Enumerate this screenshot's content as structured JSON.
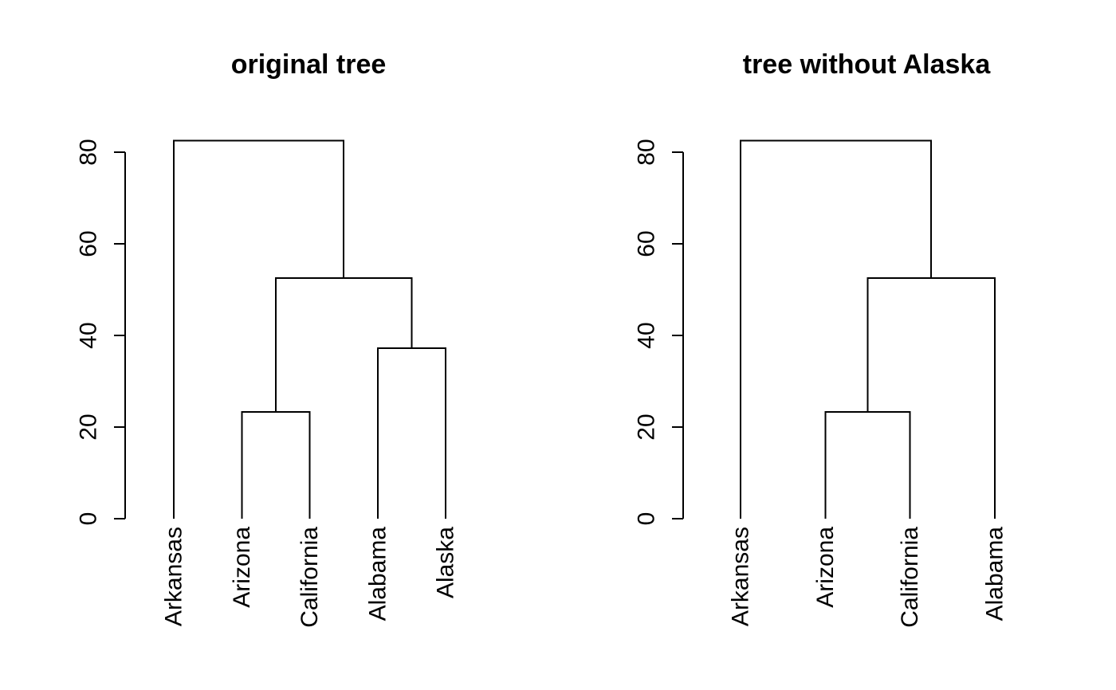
{
  "chart_data": [
    {
      "type": "dendrogram",
      "title": "original tree",
      "ylim": [
        0,
        82.5
      ],
      "y_ticks": [
        0,
        20,
        40,
        60,
        80
      ],
      "y_tick_labels": [
        "0",
        "20",
        "40",
        "60",
        "80"
      ],
      "leaves": [
        "Arkansas",
        "Arizona",
        "California",
        "Alabama",
        "Alaska"
      ],
      "merges": [
        {
          "left": [
            "Arizona"
          ],
          "right": [
            "California"
          ],
          "height": 23.3
        },
        {
          "left": [
            "Alabama"
          ],
          "right": [
            "Alaska"
          ],
          "height": 37.2
        },
        {
          "left": [
            "Arizona",
            "California"
          ],
          "right": [
            "Alabama",
            "Alaska"
          ],
          "height": 52.5
        },
        {
          "left": [
            "Arkansas"
          ],
          "right": [
            "Arizona",
            "California",
            "Alabama",
            "Alaska"
          ],
          "height": 82.5
        }
      ]
    },
    {
      "type": "dendrogram",
      "title": "tree without Alaska",
      "ylim": [
        0,
        82.5
      ],
      "y_ticks": [
        0,
        20,
        40,
        60,
        80
      ],
      "y_tick_labels": [
        "0",
        "20",
        "40",
        "60",
        "80"
      ],
      "leaves": [
        "Arkansas",
        "Arizona",
        "California",
        "Alabama"
      ],
      "merges": [
        {
          "left": [
            "Arizona"
          ],
          "right": [
            "California"
          ],
          "height": 23.3
        },
        {
          "left": [
            "Arizona",
            "California"
          ],
          "right": [
            "Alabama"
          ],
          "height": 52.5
        },
        {
          "left": [
            "Arkansas"
          ],
          "right": [
            "Arizona",
            "California",
            "Alabama"
          ],
          "height": 82.5
        }
      ]
    }
  ]
}
